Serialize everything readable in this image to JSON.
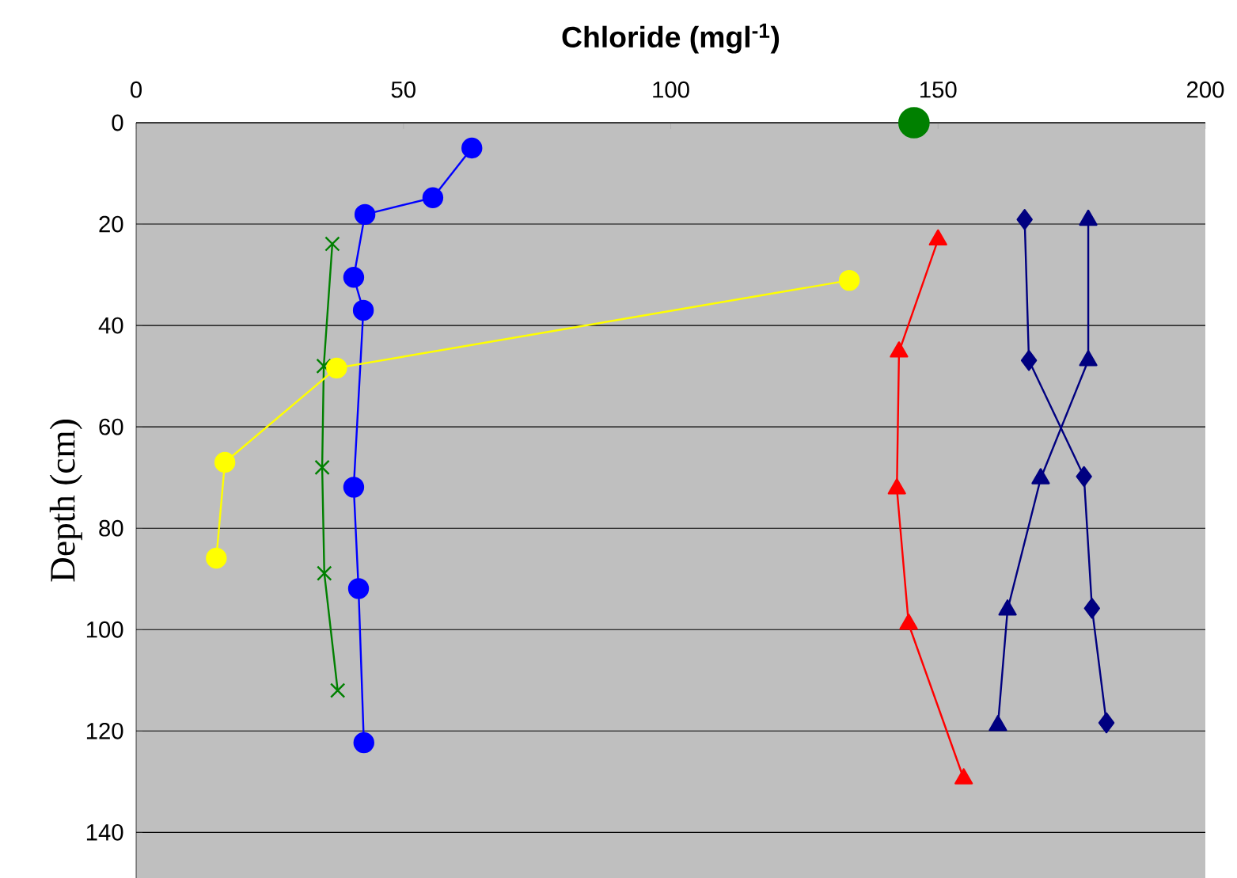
{
  "chart_data": {
    "type": "line",
    "xlabel": "Chloride (mgl$^{-1}$)",
    "ylabel": "Depth (cm)",
    "xlim": [
      0,
      200
    ],
    "xticks": [
      0,
      50,
      100,
      150,
      200
    ],
    "ylim": [
      149,
      0
    ],
    "yticks": [
      0,
      20,
      40,
      60,
      80,
      100,
      120,
      140
    ],
    "grid": "y",
    "series": [
      {
        "type": "scatter",
        "color": "#008000",
        "marker": "circle",
        "x": [
          145.5
        ],
        "values": [
          0
        ]
      },
      {
        "color": "#0000ff",
        "marker": "circle",
        "x": [
          62.8,
          55.5,
          42.8,
          40.7,
          42.5,
          40.7,
          41.6,
          42.6
        ],
        "values": [
          5.0,
          14.8,
          18.1,
          30.5,
          37.0,
          71.9,
          91.9,
          122.3
        ]
      },
      {
        "color": "#008000",
        "marker": "cross",
        "x": [
          36.7,
          35.1,
          34.8,
          35.2,
          37.7
        ],
        "values": [
          23.9,
          48.0,
          68.0,
          88.9,
          112.0
        ]
      },
      {
        "color": "#ffff00",
        "marker": "circle",
        "x": [
          133.4,
          37.5,
          16.6,
          15.0
        ],
        "values": [
          31.1,
          48.4,
          67.0,
          85.9
        ]
      },
      {
        "color": "#ff0000",
        "marker": "triangle",
        "x": [
          150.0,
          142.7,
          142.3,
          144.5,
          154.8
        ],
        "values": [
          23.1,
          45.2,
          72.2,
          98.9,
          129.4
        ]
      },
      {
        "color": "#000080",
        "marker": "triangle",
        "x": [
          178.1,
          178.1,
          169.2,
          163.0,
          161.2
        ],
        "values": [
          19.2,
          46.9,
          70.2,
          96.1,
          118.9
        ]
      },
      {
        "color": "#000080",
        "marker": "diamond",
        "x": [
          166.2,
          167.0,
          177.3,
          178.8,
          181.5
        ],
        "values": [
          19.1,
          46.9,
          69.8,
          95.8,
          118.4
        ]
      }
    ]
  }
}
